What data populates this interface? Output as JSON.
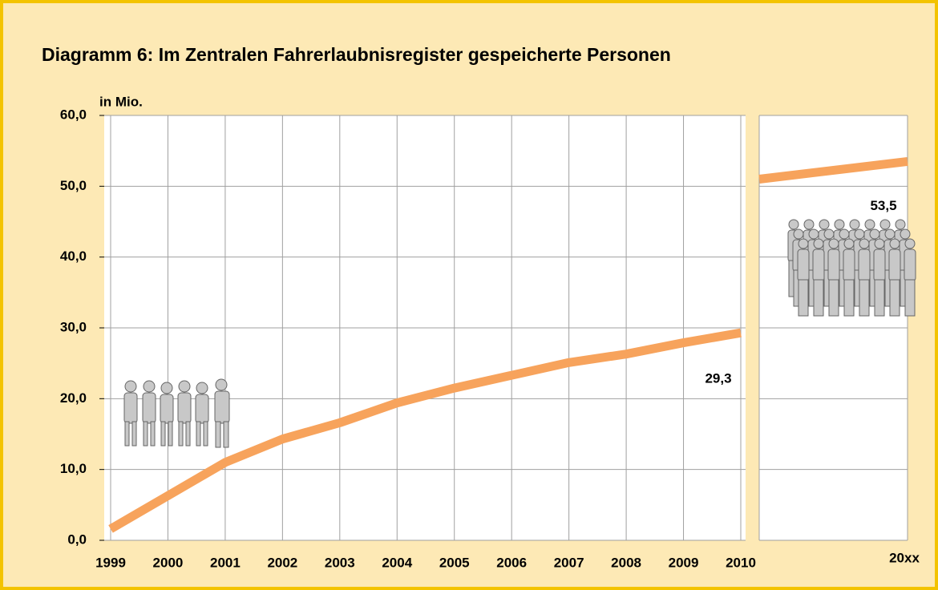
{
  "chart_data": {
    "type": "line",
    "title": "Diagramm 6: Im Zentralen Fahrerlaubnisregister gespeicherte Personen",
    "y_label": "in Mio.",
    "categories": [
      "1999",
      "2000",
      "2001",
      "2002",
      "2003",
      "2004",
      "2005",
      "2006",
      "2007",
      "2008",
      "2009",
      "2010"
    ],
    "values": [
      1.6,
      6.3,
      11.0,
      14.3,
      16.6,
      19.4,
      21.5,
      23.3,
      25.1,
      26.3,
      27.9,
      29.3
    ],
    "value_labels": [
      null,
      null,
      null,
      null,
      null,
      null,
      null,
      null,
      null,
      null,
      null,
      "29,3"
    ],
    "extension": {
      "categories": [
        null,
        "20xx"
      ],
      "values": [
        51.0,
        53.5
      ],
      "value_labels": [
        null,
        "53,5"
      ]
    },
    "color": "#f7a35c",
    "ylim": [
      0,
      60
    ],
    "yticks": [
      {
        "value": 0,
        "label": "0,0"
      },
      {
        "value": 10,
        "label": "10,0"
      },
      {
        "value": 20,
        "label": "20,0"
      },
      {
        "value": 30,
        "label": "30,0"
      },
      {
        "value": 40,
        "label": "40,0"
      },
      {
        "value": 50,
        "label": "50,0"
      },
      {
        "value": 60,
        "label": "60,0"
      }
    ],
    "grid": true
  }
}
